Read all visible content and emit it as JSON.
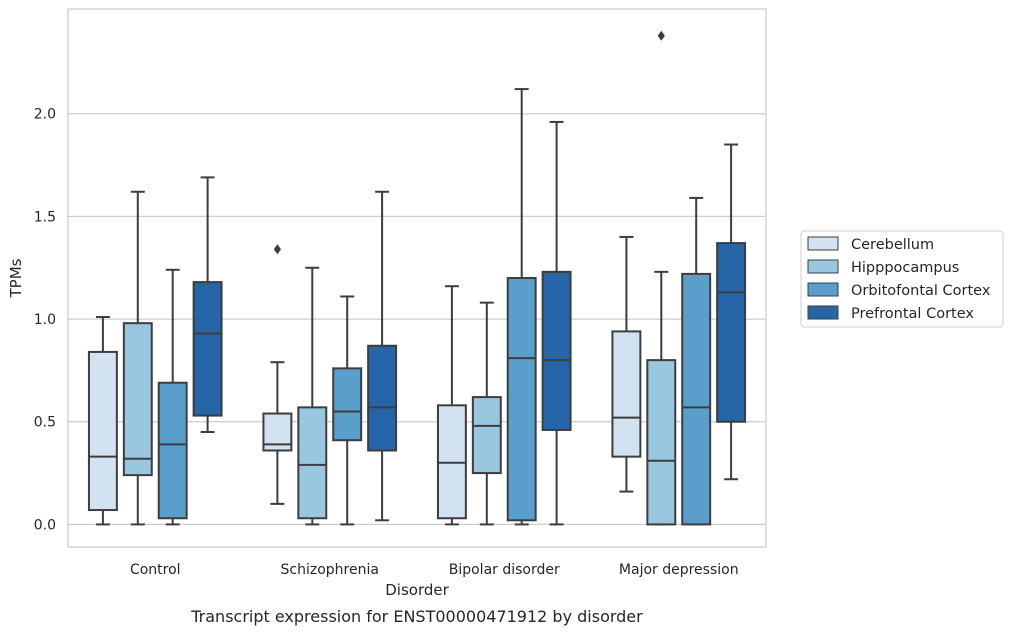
{
  "chart_data": {
    "type": "box",
    "caption": "Transcript expression for ENST00000471912 by disorder",
    "xlabel": "Disorder",
    "ylabel": "TPMs",
    "ylim": [
      -0.11,
      2.51
    ],
    "yticks": [
      0.0,
      0.5,
      1.0,
      1.5,
      2.0
    ],
    "ytick_labels": [
      "0.0",
      "0.5",
      "1.0",
      "1.5",
      "2.0"
    ],
    "grid": "horizontal",
    "legend_position": "right",
    "categories": [
      "Control",
      "Schizophrenia",
      "Bipolar disorder",
      "Major depression"
    ],
    "series": [
      {
        "name": "Cerebellum",
        "color": "#d2e2f1",
        "boxes": [
          {
            "whisker_low": 0.0,
            "q1": 0.07,
            "median": 0.33,
            "q3": 0.84,
            "whisker_high": 1.01,
            "outliers": []
          },
          {
            "whisker_low": 0.1,
            "q1": 0.36,
            "median": 0.39,
            "q3": 0.54,
            "whisker_high": 0.79,
            "outliers": [
              1.34
            ]
          },
          {
            "whisker_low": 0.0,
            "q1": 0.03,
            "median": 0.3,
            "q3": 0.58,
            "whisker_high": 1.16,
            "outliers": []
          },
          {
            "whisker_low": 0.16,
            "q1": 0.33,
            "median": 0.52,
            "q3": 0.94,
            "whisker_high": 1.4,
            "outliers": []
          }
        ]
      },
      {
        "name": "Hipppocampus",
        "color": "#9ac7e0",
        "boxes": [
          {
            "whisker_low": 0.0,
            "q1": 0.24,
            "median": 0.32,
            "q3": 0.98,
            "whisker_high": 1.62,
            "outliers": []
          },
          {
            "whisker_low": 0.0,
            "q1": 0.03,
            "median": 0.29,
            "q3": 0.57,
            "whisker_high": 1.25,
            "outliers": []
          },
          {
            "whisker_low": 0.0,
            "q1": 0.25,
            "median": 0.48,
            "q3": 0.62,
            "whisker_high": 1.08,
            "outliers": []
          },
          {
            "whisker_low": 0.0,
            "q1": 0.0,
            "median": 0.31,
            "q3": 0.8,
            "whisker_high": 1.23,
            "outliers": [
              2.38
            ]
          }
        ]
      },
      {
        "name": "Orbitofontal Cortex",
        "color": "#5a9ecc",
        "boxes": [
          {
            "whisker_low": 0.0,
            "q1": 0.03,
            "median": 0.39,
            "q3": 0.69,
            "whisker_high": 1.24,
            "outliers": []
          },
          {
            "whisker_low": 0.0,
            "q1": 0.41,
            "median": 0.55,
            "q3": 0.76,
            "whisker_high": 1.11,
            "outliers": []
          },
          {
            "whisker_low": 0.0,
            "q1": 0.02,
            "median": 0.81,
            "q3": 1.2,
            "whisker_high": 2.12,
            "outliers": []
          },
          {
            "whisker_low": 0.0,
            "q1": 0.0,
            "median": 0.57,
            "q3": 1.22,
            "whisker_high": 1.59,
            "outliers": []
          }
        ]
      },
      {
        "name": "Prefrontal Cortex",
        "color": "#2565a8",
        "boxes": [
          {
            "whisker_low": 0.45,
            "q1": 0.53,
            "median": 0.93,
            "q3": 1.18,
            "whisker_high": 1.69,
            "outliers": []
          },
          {
            "whisker_low": 0.02,
            "q1": 0.36,
            "median": 0.57,
            "q3": 0.87,
            "whisker_high": 1.62,
            "outliers": []
          },
          {
            "whisker_low": 0.0,
            "q1": 0.46,
            "median": 0.8,
            "q3": 1.23,
            "whisker_high": 1.96,
            "outliers": []
          },
          {
            "whisker_low": 0.22,
            "q1": 0.5,
            "median": 1.13,
            "q3": 1.37,
            "whisker_high": 1.85,
            "outliers": []
          }
        ]
      }
    ]
  }
}
